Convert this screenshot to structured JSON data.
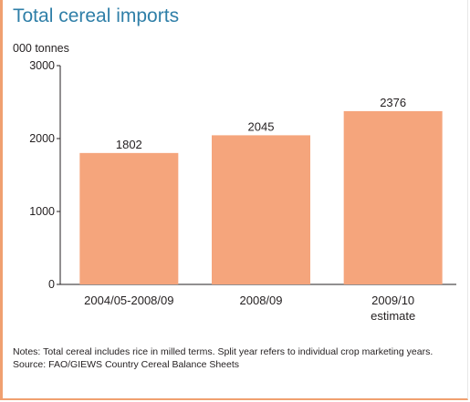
{
  "title": "Total cereal imports",
  "unit_label": "000 tonnes",
  "notes": "Notes: Total cereal includes rice in milled terms. Split year refers to individual crop marketing years.",
  "source": "Source: FAO/GIEWS Country Cereal Balance Sheets",
  "colors": {
    "bar": "#f5a57c",
    "title": "#2f7fa8",
    "frame": "#f0a070"
  },
  "chart_data": {
    "type": "bar",
    "categories": [
      [
        "2004/05-2008/09"
      ],
      [
        "2008/09"
      ],
      [
        "2009/10",
        "estimate"
      ]
    ],
    "values": [
      1802,
      2045,
      2376
    ],
    "value_labels": [
      "1802",
      "2045",
      "2376"
    ],
    "yticks": [
      0,
      1000,
      2000,
      3000
    ],
    "ytick_labels": [
      "0",
      "1000",
      "2000",
      "3000"
    ],
    "ylim": [
      0,
      3000
    ],
    "title": "Total cereal imports",
    "ylabel": "000 tonnes",
    "xlabel": "",
    "grid": false
  }
}
